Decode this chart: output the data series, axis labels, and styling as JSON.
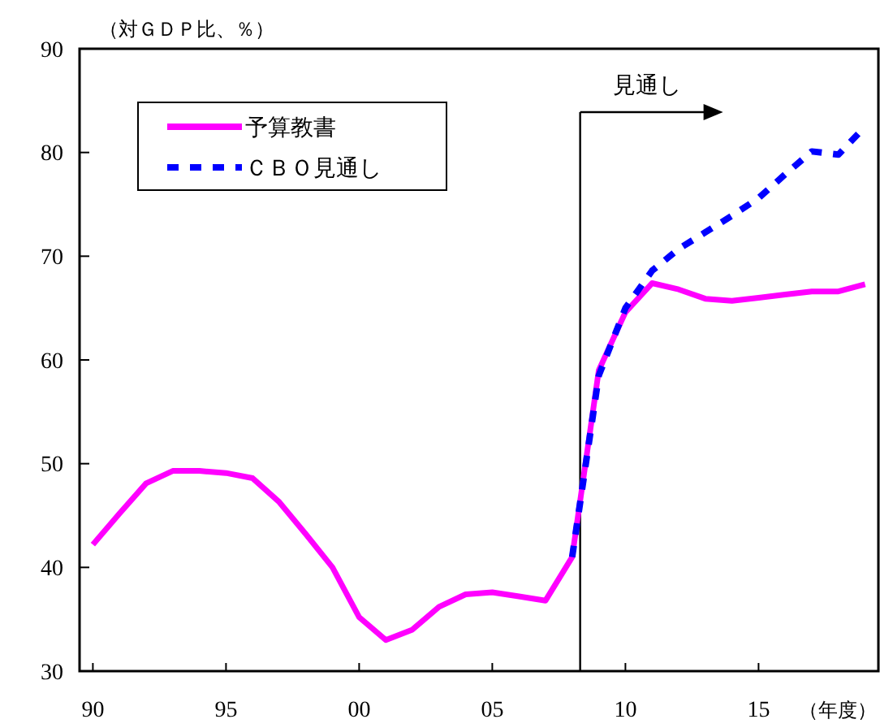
{
  "chart_data": {
    "type": "line",
    "ylabel": "（対ＧＤＰ比、％）",
    "xlabel": "（年度）",
    "x": [
      1990,
      1991,
      1992,
      1993,
      1994,
      1995,
      1996,
      1997,
      1998,
      1999,
      2000,
      2001,
      2002,
      2003,
      2004,
      2005,
      2006,
      2007,
      2008,
      2009,
      2010,
      2011,
      2012,
      2013,
      2014,
      2015,
      2016,
      2017,
      2018,
      2019
    ],
    "series": [
      {
        "name": "予算教書",
        "color": "#ff00ff",
        "line_style": "solid",
        "values": [
          42.2,
          45.2,
          48.1,
          49.3,
          49.3,
          49.1,
          48.6,
          46.3,
          43.2,
          40.0,
          35.2,
          33.0,
          34.0,
          36.2,
          37.4,
          37.6,
          37.2,
          36.8,
          41.0,
          59.0,
          64.6,
          67.4,
          66.8,
          65.9,
          65.7,
          66.0,
          66.3,
          66.6,
          66.6,
          67.3
        ]
      },
      {
        "name": "ＣＢＯ見通し",
        "color": "#0000ff",
        "line_style": "dashed",
        "x": [
          2008,
          2009,
          2010,
          2011,
          2012,
          2013,
          2014,
          2015,
          2016,
          2017,
          2018,
          2019
        ],
        "values": [
          41.0,
          58.5,
          65.0,
          68.6,
          70.7,
          72.3,
          73.9,
          75.6,
          77.9,
          80.1,
          79.8,
          82.5
        ]
      }
    ],
    "xlim": [
      1989.5,
      2019.5
    ],
    "xticks": [
      {
        "value": 1990,
        "label": "90"
      },
      {
        "value": 1995,
        "label": "95"
      },
      {
        "value": 2000,
        "label": "00"
      },
      {
        "value": 2005,
        "label": "05"
      },
      {
        "value": 2010,
        "label": "10"
      },
      {
        "value": 2015,
        "label": "15"
      }
    ],
    "ylim": [
      30,
      90
    ],
    "yticks": [
      30,
      40,
      50,
      60,
      70,
      80,
      90
    ],
    "ref_lines": [
      {
        "axis": "x",
        "value": 2008.3,
        "label": "見通し"
      }
    ],
    "grid": false,
    "legend": "top left"
  }
}
